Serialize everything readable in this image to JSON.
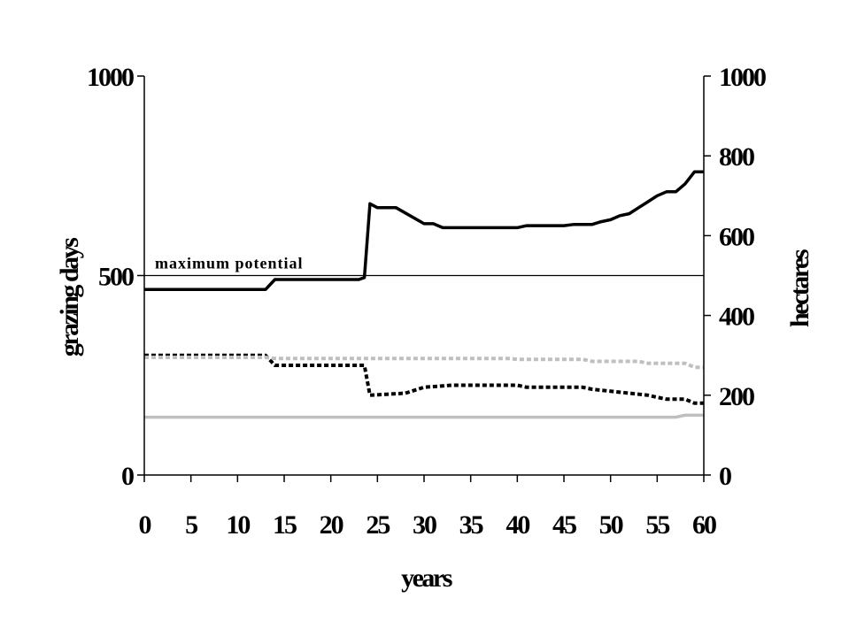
{
  "chart_data": {
    "type": "line",
    "xlabel": "years",
    "ylabel_left": "grazing days",
    "ylabel_right": "hectares",
    "xlim": [
      0,
      60
    ],
    "ylim_left": [
      0,
      1000
    ],
    "ylim_right": [
      0,
      1000
    ],
    "x_ticks": [
      0,
      5,
      10,
      15,
      20,
      25,
      30,
      35,
      40,
      45,
      50,
      55,
      60
    ],
    "y_ticks_left": [
      0,
      500,
      1000
    ],
    "y_ticks_right": [
      0,
      200,
      400,
      600,
      800,
      1000
    ],
    "grid": false,
    "legend": "none",
    "reference_line": {
      "value": 500,
      "label": "maximum potential"
    },
    "series": [
      {
        "axis": "left",
        "color": "#000000",
        "style": "solid",
        "x": [
          0,
          13,
          14,
          23,
          23.6,
          24.2,
          25,
          27,
          30,
          31,
          32,
          40,
          41,
          45,
          46,
          48,
          49,
          50,
          51,
          52,
          53,
          54,
          55,
          56,
          57,
          58,
          59,
          60
        ],
        "y": [
          465,
          465,
          490,
          490,
          495,
          680,
          670,
          670,
          630,
          630,
          620,
          620,
          625,
          625,
          628,
          628,
          635,
          640,
          650,
          655,
          670,
          685,
          700,
          710,
          710,
          730,
          760,
          760
        ]
      },
      {
        "axis": "left",
        "color": "#000000",
        "style": "dashed",
        "x": [
          0,
          13,
          14,
          22,
          23.6,
          24.2,
          28,
          30,
          33,
          40,
          41,
          47,
          48,
          50,
          52,
          54,
          55,
          56,
          58,
          59,
          60
        ],
        "y": [
          300,
          300,
          275,
          275,
          275,
          200,
          205,
          220,
          225,
          225,
          220,
          220,
          215,
          210,
          205,
          200,
          195,
          190,
          190,
          180,
          180
        ]
      },
      {
        "axis": "left",
        "color": "#bfbfbf",
        "style": "dashed",
        "x": [
          0,
          13,
          14,
          39,
          40,
          47,
          48,
          53,
          54,
          58,
          59,
          60
        ],
        "y": [
          295,
          295,
          292,
          292,
          290,
          290,
          285,
          285,
          280,
          280,
          270,
          270
        ]
      },
      {
        "axis": "left",
        "color": "#bfbfbf",
        "style": "solid",
        "x": [
          0,
          57,
          58,
          60
        ],
        "y": [
          145,
          145,
          150,
          150
        ]
      }
    ]
  }
}
